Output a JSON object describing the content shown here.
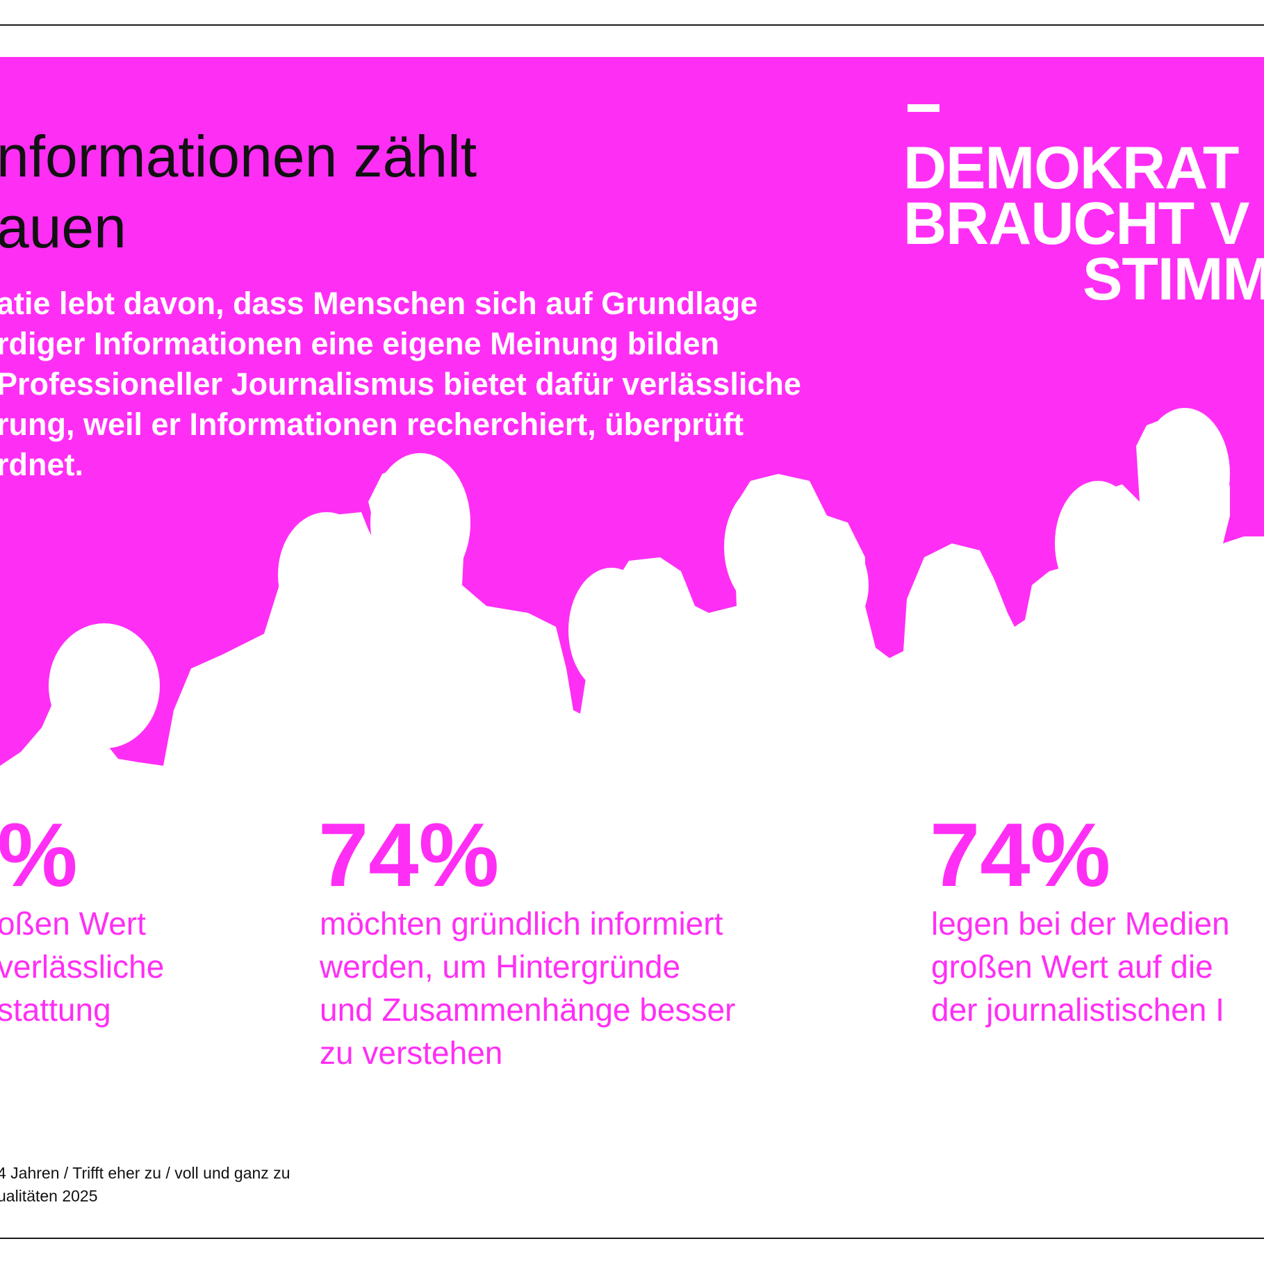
{
  "colors": {
    "accent": "#ff2ef5",
    "text": "#111111",
    "background": "#ffffff"
  },
  "headline": {
    "line1": "nformationen zählt",
    "line2": "auen"
  },
  "intro": {
    "lines": [
      "atie lebt davon, dass Menschen sich auf Grundlage",
      "rdiger Informationen eine eigene Meinung bilden",
      "Professioneller Journalismus bietet dafür verlässliche",
      "rung, weil er Informationen recherchiert, überprüft",
      "rdnet."
    ]
  },
  "logo": {
    "line1": "DEMOKRAT",
    "line2": "BRAUCHT V",
    "line3": "STIMM"
  },
  "stats": [
    {
      "value": "%",
      "lines": [
        "oßen Wert",
        "verlässliche",
        "stattung"
      ]
    },
    {
      "value": "74%",
      "lines": [
        "möchten gründlich informiert",
        "werden, um Hintergründe",
        "und Zusammenhänge besser",
        "zu verstehen"
      ]
    },
    {
      "value": "74%",
      "lines": [
        "legen bei der Medien",
        "großen Wert auf die",
        "der journalistischen I"
      ]
    }
  ],
  "footnote": {
    "line1": "4 Jahren / Trifft eher zu / voll und ganz zu",
    "line2": "ualitäten 2025"
  }
}
